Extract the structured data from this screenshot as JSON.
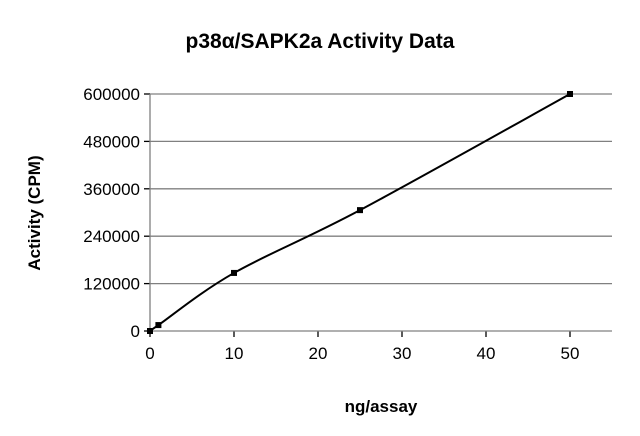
{
  "chart_data": {
    "type": "line",
    "title": "p38α/SAPK2a Activity Data",
    "xlabel": "ng/assay",
    "ylabel": "Activity (CPM)",
    "xlim": [
      0,
      55
    ],
    "ylim": [
      0,
      600000
    ],
    "xticks": [
      0,
      10,
      20,
      30,
      40,
      50
    ],
    "yticks": [
      0,
      120000,
      240000,
      360000,
      480000,
      600000
    ],
    "grid": "horizontal",
    "smooth": true,
    "series": [
      {
        "x": [
          0,
          1,
          10,
          25,
          50
        ],
        "y": [
          0,
          15000,
          147000,
          306000,
          600000
        ],
        "color": "#000000"
      }
    ]
  }
}
